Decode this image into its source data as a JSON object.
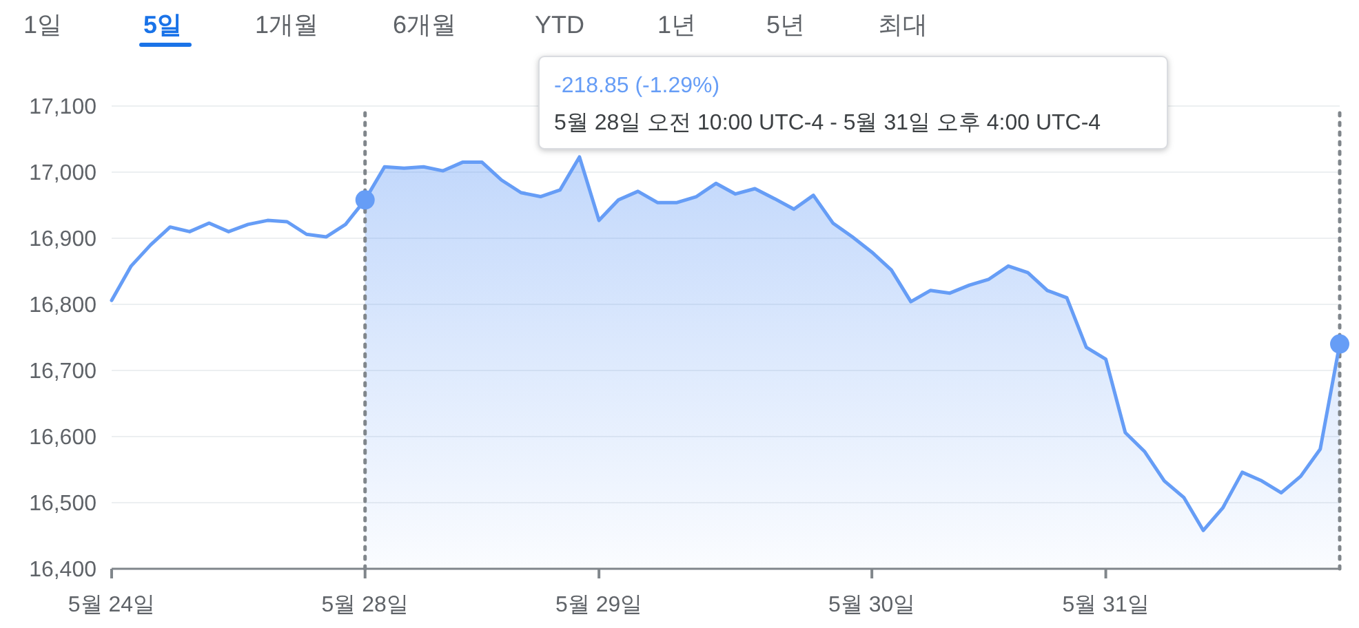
{
  "chart_data": {
    "type": "line",
    "categories": [
      "5월 24일",
      null,
      null,
      null,
      null,
      null,
      null,
      null,
      null,
      null,
      null,
      null,
      null,
      "5월 28일",
      null,
      null,
      null,
      null,
      null,
      null,
      null,
      null,
      null,
      null,
      null,
      "5월 29일",
      null,
      null,
      null,
      null,
      null,
      null,
      null,
      null,
      null,
      null,
      null,
      null,
      null,
      "5월 30일",
      null,
      null,
      null,
      null,
      null,
      null,
      null,
      null,
      null,
      null,
      null,
      "5월 31일",
      null,
      null,
      null,
      null,
      null,
      null,
      null,
      null,
      null,
      null,
      null,
      null
    ],
    "series": [
      {
        "type": "area",
        "color": "#669df6",
        "values": [
          null,
          null,
          null,
          null,
          null,
          null,
          null,
          null,
          null,
          null,
          null,
          null,
          null,
          16958,
          17008,
          17006,
          17008,
          17002,
          17015,
          17015,
          16988,
          16969,
          16963,
          16973,
          17023,
          16927,
          16958,
          16971,
          16954,
          16954,
          16963,
          16983,
          16967,
          16975,
          16960,
          16944,
          16965,
          16923,
          16902,
          16879,
          16852,
          16804,
          16821,
          16817,
          16829,
          16838,
          16858,
          16848,
          16821,
          16810,
          16735,
          16717,
          16606,
          16577,
          16533,
          16508,
          16458,
          16492,
          16546,
          16533,
          16515,
          16540,
          16581,
          16740
        ]
      },
      {
        "values": [
          16806,
          16858,
          16890,
          16917,
          16910,
          16923,
          16910,
          16921,
          16927,
          16925,
          16906,
          16902,
          16921,
          16958,
          17008,
          17006,
          17008,
          17002,
          17015,
          17015,
          16988,
          16969,
          16963,
          16973,
          17023,
          16927,
          16958,
          16971,
          16954,
          16954,
          16963,
          16983,
          16967,
          16975,
          16960,
          16944,
          16965,
          16923,
          16902,
          16879,
          16852,
          16804,
          16821,
          16817,
          16829,
          16838,
          16858,
          16848,
          16821,
          16810,
          16735,
          16717,
          16606,
          16577,
          16533,
          16508,
          16458,
          16492,
          16546,
          16533,
          16515,
          16540,
          16581,
          16740
        ],
        "color": "#669df6"
      },
      {
        "type": "scatter",
        "color": "#669df6",
        "values": [
          null,
          null,
          null,
          null,
          null,
          null,
          null,
          null,
          null,
          null,
          null,
          null,
          null,
          16958,
          null,
          null,
          null,
          null,
          null,
          null,
          null,
          null,
          null,
          null,
          null,
          null,
          null,
          null,
          null,
          null,
          null,
          null,
          null,
          null,
          null,
          null,
          null,
          null,
          null,
          null,
          null,
          null,
          null,
          null,
          null,
          null,
          null,
          null,
          null,
          null,
          null,
          null,
          null,
          null,
          null,
          null,
          null,
          null,
          null,
          null,
          null,
          null,
          null,
          16740
        ]
      }
    ],
    "ylim": [
      16400,
      17100
    ],
    "yticks": [
      {
        "value": 16400,
        "label": "16,400"
      },
      {
        "value": 16500,
        "label": "16,500"
      },
      {
        "value": 16600,
        "label": "16,600"
      },
      {
        "value": 16700,
        "label": "16,700"
      },
      {
        "value": 16800,
        "label": "16,800"
      },
      {
        "value": 16900,
        "label": "16,900"
      },
      {
        "value": 17000,
        "label": "17,000"
      },
      {
        "value": 17100,
        "label": "17,100"
      }
    ],
    "grid": "y",
    "ref_lines": [
      {
        "axis": "x",
        "value": "5월 28일",
        "color": "#80868b",
        "line_style": "dotted"
      }
    ],
    "annotations": [
      "-218.85 (-1.29%)",
      "5월 28일 오전 10:00 UTC-4 - 5월 31일 오후 4:00 UTC-4",
      "1일",
      "5일",
      "1개월",
      "6개월",
      "YTD",
      "1년",
      "5년",
      "최대"
    ]
  }
}
